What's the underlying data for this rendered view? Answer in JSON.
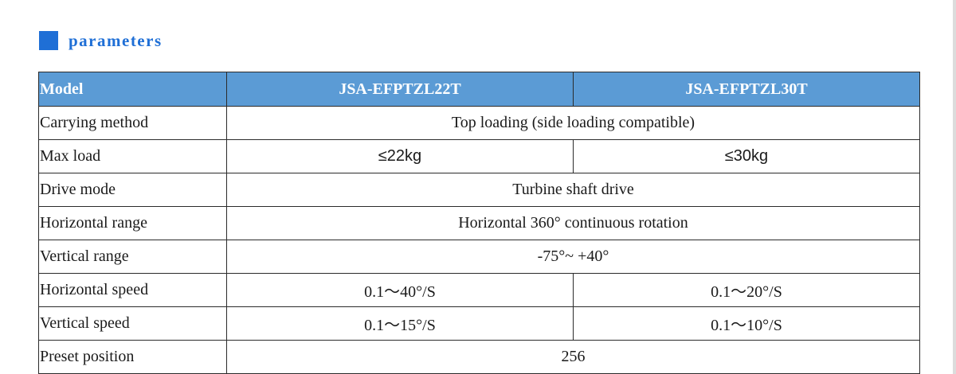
{
  "section": {
    "title": "parameters"
  },
  "table": {
    "header": {
      "label": "Model",
      "models": [
        "JSA-EFPTZL22T",
        "JSA-EFPTZL30T"
      ]
    },
    "rows": [
      {
        "label": "Carrying method",
        "merged": true,
        "value": "Top loading (side loading compatible)"
      },
      {
        "label": "Max load",
        "merged": false,
        "values": [
          "≤22kg",
          "≤30kg"
        ]
      },
      {
        "label": "Drive mode",
        "merged": true,
        "value": "Turbine shaft drive"
      },
      {
        "label": "Horizontal range",
        "merged": true,
        "value": "Horizontal 360° continuous rotation"
      },
      {
        "label": "Vertical range",
        "merged": true,
        "value": "-75°~ +40°"
      },
      {
        "label": "Horizontal speed",
        "merged": false,
        "values": [
          "0.1～40°/S",
          "0.1～20°/S"
        ]
      },
      {
        "label": "Vertical speed",
        "merged": false,
        "values": [
          "0.1～15°/S",
          "0.1～10°/S"
        ]
      },
      {
        "label": "Preset position",
        "merged": true,
        "value": "256"
      }
    ]
  },
  "colors": {
    "accent": "#1f6fd6",
    "header_bg": "#5b9bd5",
    "border": "#2b2b2b"
  }
}
